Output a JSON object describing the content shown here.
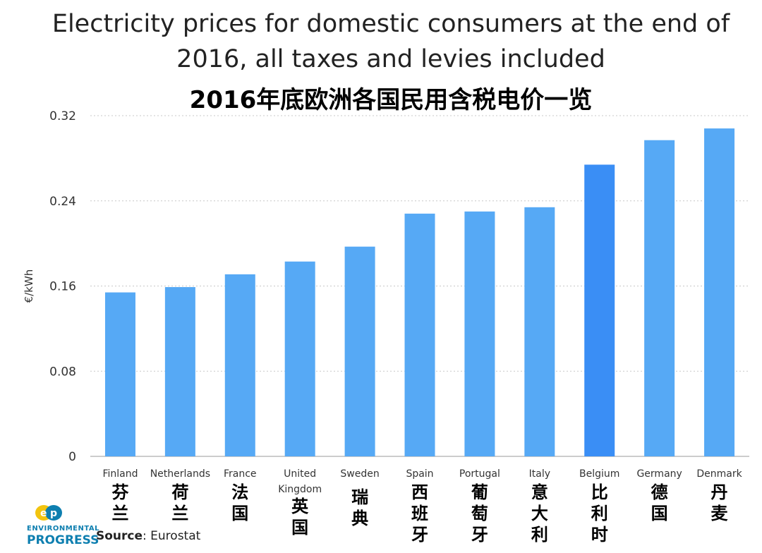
{
  "header": {
    "title_line1": "Electricity prices for domestic consumers at the end of",
    "title_line2": "2016, all taxes and levies included",
    "title_cn": "2016年底欧洲各国民用含税电价一览"
  },
  "footer": {
    "source_label": "Source",
    "source_value": ": Eurostat",
    "logo_line1": "ENVIRONMENTAL",
    "logo_line2": "PROGRESS"
  },
  "colors": {
    "bar": "#56a9f5",
    "bar_highlight": "#3a8ef5",
    "grid": "#c8c8c8",
    "logo_teal": "#0e7fb0",
    "logo_yellow": "#f2c40f"
  },
  "chart_data": {
    "type": "bar",
    "ylabel": "€/kWh",
    "ylim": [
      0,
      0.32
    ],
    "yticks": [
      0,
      0.08,
      0.16,
      0.24,
      0.32
    ],
    "ytick_labels": [
      "0",
      "0.08",
      "0.16",
      "0.24",
      "0.32"
    ],
    "grid": true,
    "highlight": "Belgium",
    "categories": [
      {
        "name": "Finland",
        "name_cn": "芬兰",
        "value": 0.154
      },
      {
        "name": "Netherlands",
        "name_cn": "荷兰",
        "value": 0.159
      },
      {
        "name": "France",
        "name_cn": "法国",
        "value": 0.171
      },
      {
        "name": "United Kingdom",
        "name_cn": "英国",
        "value": 0.183
      },
      {
        "name": "Sweden",
        "name_cn": "瑞典",
        "value": 0.197
      },
      {
        "name": "Spain",
        "name_cn": "西班牙",
        "value": 0.228
      },
      {
        "name": "Portugal",
        "name_cn": "葡萄牙",
        "value": 0.23
      },
      {
        "name": "Italy",
        "name_cn": "意大利",
        "value": 0.234
      },
      {
        "name": "Belgium",
        "name_cn": "比利时",
        "value": 0.274
      },
      {
        "name": "Germany",
        "name_cn": "德国",
        "value": 0.297
      },
      {
        "name": "Denmark",
        "name_cn": "丹麦",
        "value": 0.308
      }
    ]
  }
}
